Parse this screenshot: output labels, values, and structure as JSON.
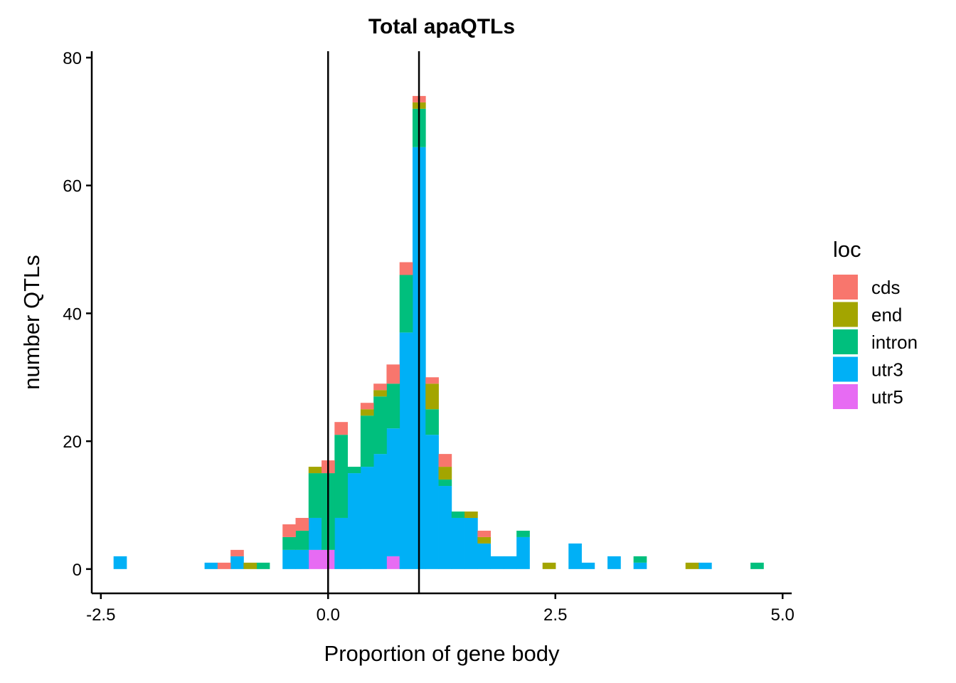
{
  "chart_data": {
    "type": "bar",
    "stacked": true,
    "title": "Total apaQTLs",
    "xlabel": "Proportion of gene body",
    "ylabel": "number QTLs",
    "xlim": [
      -2.6,
      5.1
    ],
    "ylim": [
      -3.8,
      81
    ],
    "x_ticks": [
      -2.5,
      0.0,
      2.5,
      5.0
    ],
    "x_tick_labels": [
      "-2.5",
      "0.0",
      "2.5",
      "5.0"
    ],
    "y_ticks": [
      0,
      20,
      40,
      60,
      80
    ],
    "y_tick_labels": [
      "0",
      "20",
      "40",
      "60",
      "80"
    ],
    "grid": false,
    "bin_width": 0.143,
    "bin_starts": [
      -2.36,
      -2.217,
      -2.074,
      -1.931,
      -1.788,
      -1.645,
      -1.502,
      -1.359,
      -1.216,
      -1.073,
      -0.93,
      -0.787,
      -0.644,
      -0.501,
      -0.358,
      -0.215,
      -0.072,
      0.071,
      0.214,
      0.357,
      0.5,
      0.643,
      0.786,
      0.929,
      1.072,
      1.215,
      1.358,
      1.501,
      1.644,
      1.787,
      1.93,
      2.073,
      2.216,
      2.359,
      2.502,
      2.645,
      2.788,
      2.931,
      3.074,
      3.217,
      3.36,
      3.503,
      3.646,
      3.789,
      3.932,
      4.075,
      4.218,
      4.361,
      4.504,
      4.647
    ],
    "reference_lines_x": [
      0,
      1
    ],
    "legend_title": "loc",
    "legend_position": "right",
    "series": [
      {
        "name": "utr5",
        "color": "#E76BF3",
        "values": [
          0,
          0,
          0,
          0,
          0,
          0,
          0,
          0,
          0,
          0,
          0,
          0,
          0,
          0,
          0,
          3,
          3,
          0,
          0,
          0,
          0,
          2,
          0,
          0,
          0,
          0,
          0,
          0,
          0,
          0,
          0,
          0,
          0,
          0,
          0,
          0,
          0,
          0,
          0,
          0,
          0,
          0,
          0,
          0,
          0,
          0,
          0,
          0,
          0,
          0
        ]
      },
      {
        "name": "utr3",
        "color": "#00B0F6",
        "values": [
          2,
          0,
          0,
          0,
          0,
          0,
          0,
          1,
          0,
          2,
          0,
          0,
          0,
          3,
          3,
          5,
          0,
          8,
          15,
          16,
          18,
          20,
          37,
          66,
          21,
          13,
          8,
          8,
          4,
          2,
          2,
          5,
          0,
          0,
          0,
          4,
          1,
          0,
          2,
          0,
          1,
          0,
          0,
          0,
          0,
          1,
          0,
          0,
          0,
          0
        ]
      },
      {
        "name": "intron",
        "color": "#00BF7D",
        "values": [
          0,
          0,
          0,
          0,
          0,
          0,
          0,
          0,
          0,
          0,
          0,
          1,
          0,
          2,
          3,
          7,
          12,
          13,
          1,
          8,
          9,
          7,
          9,
          6,
          4,
          1,
          1,
          0,
          0,
          0,
          0,
          1,
          0,
          0,
          0,
          0,
          0,
          0,
          0,
          0,
          1,
          0,
          0,
          0,
          0,
          0,
          0,
          0,
          0,
          1
        ]
      },
      {
        "name": "end",
        "color": "#A3A500",
        "values": [
          0,
          0,
          0,
          0,
          0,
          0,
          0,
          0,
          0,
          0,
          1,
          0,
          0,
          0,
          0,
          1,
          0,
          0,
          0,
          1,
          1,
          0,
          0,
          1,
          4,
          2,
          0,
          1,
          1,
          0,
          0,
          0,
          0,
          1,
          0,
          0,
          0,
          0,
          0,
          0,
          0,
          0,
          0,
          0,
          1,
          0,
          0,
          0,
          0,
          0
        ]
      },
      {
        "name": "cds",
        "color": "#F8766D",
        "values": [
          0,
          0,
          0,
          0,
          0,
          0,
          0,
          0,
          1,
          1,
          0,
          0,
          0,
          2,
          2,
          0,
          2,
          2,
          0,
          1,
          1,
          3,
          2,
          1,
          1,
          2,
          0,
          0,
          1,
          0,
          0,
          0,
          0,
          0,
          0,
          0,
          0,
          0,
          0,
          0,
          0,
          0,
          0,
          0,
          0,
          0,
          0,
          0,
          0,
          0
        ]
      }
    ],
    "legend_order": [
      "cds",
      "end",
      "intron",
      "utr3",
      "utr5"
    ]
  }
}
